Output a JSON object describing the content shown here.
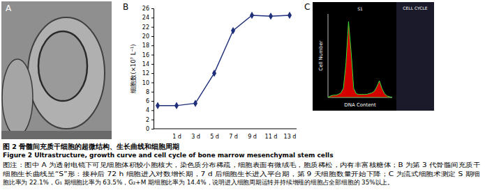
{
  "panel_labels": [
    "A",
    "B",
    "C"
  ],
  "chart_data": [
    {
      "type": "line",
      "y_label": "细胞数(×10⁷ L⁻¹)",
      "categories": [
        null,
        "1 d",
        "3 d",
        "5 d",
        "7 d",
        "9 d",
        "11 d",
        "13 d"
      ],
      "values": [
        5.0,
        5.0,
        5.5,
        12.0,
        21.2,
        24.5,
        24.3,
        24.5
      ],
      "color": "#1f2f7a",
      "marker": "diamond",
      "ylim": [
        0,
        26
      ],
      "yticks": [
        0,
        2,
        4,
        6,
        8,
        10,
        12,
        14,
        16,
        18,
        20,
        22,
        24,
        26
      ]
    },
    {
      "type": "area",
      "x_label": "DNA Content",
      "y_label": "Cell Number",
      "annotations": [
        "S1",
        "CELL CYCLE"
      ],
      "x": [
        0,
        4,
        8,
        12,
        16,
        20,
        24,
        28,
        32,
        36,
        40,
        44,
        48,
        52,
        56,
        60,
        64,
        68,
        72,
        76,
        80,
        84,
        88,
        92,
        96,
        100
      ],
      "values": [
        0,
        2,
        3,
        3,
        4,
        6,
        12,
        45,
        100,
        60,
        12,
        5,
        4,
        4,
        4,
        4,
        5,
        6,
        8,
        14,
        22,
        12,
        5,
        2,
        1,
        0
      ],
      "color": "#d40000",
      "xlim": [
        0,
        100
      ],
      "ylim": [
        0,
        110
      ],
      "tick_labels": false
    }
  ],
  "caption": {
    "title_cn": "图 2   骨髓间充质干细胞的超微结构、生长曲线和细胞周期",
    "title_en": "Figure 2   Ultrastructure, growth curve and cell cycle of bone marrow mesenchymal stem cells",
    "note": [
      "图注：图中 A 为透射电镜下可见细胞体积较小胞核大，染色质分布稀疏，细胞表面有微绒毛，胞质稀松，内有丰富核糖体；B 为第 3 代骨髓间充质干",
      "细胞生长曲线呈“S”形：接种后 72 h 细胞进入对数增长期，7 d 后细胞生长进入平台期，第 9 天细胞数量开始下降；C 为流式细胞术测定 S 期细",
      "胞比率为 22.1%，G₁ 期细胞比率为 63.5%，G₂+M 期细胞比率为 14.4%，说明进入细胞周期运转并持续增殖的细胞占全部细胞的 35%以上。"
    ]
  }
}
